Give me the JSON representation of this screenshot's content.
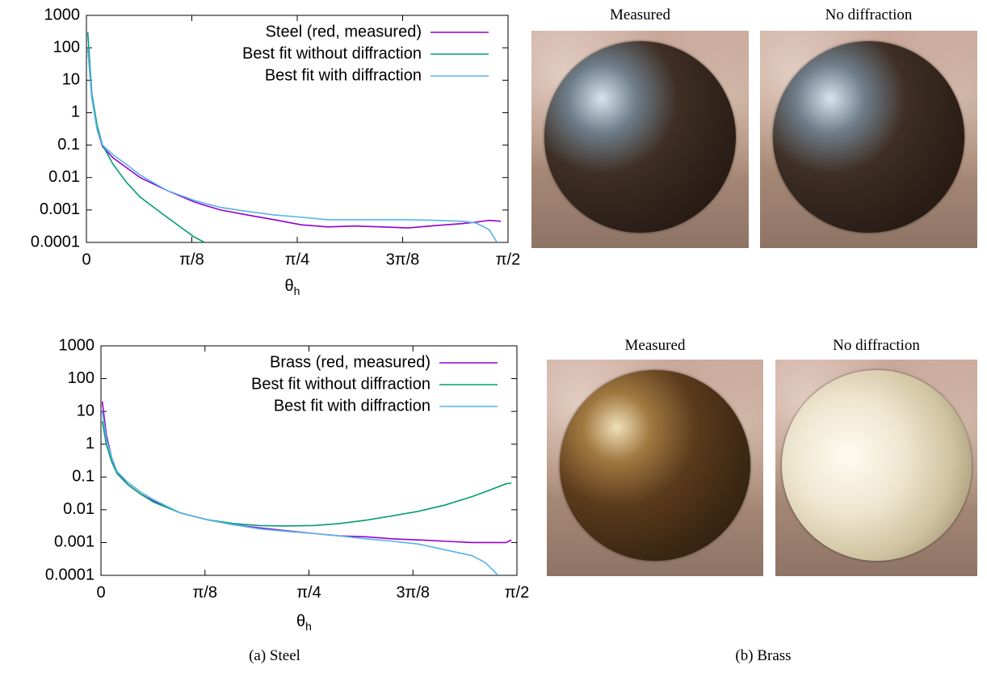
{
  "chart_data": [
    {
      "type": "line",
      "xlabel": "θ",
      "xlabel_sub": "h",
      "log_y": true,
      "xlim": [
        0,
        1.5708
      ],
      "ylim": [
        0.0001,
        1000
      ],
      "xticks": [
        0,
        {
          "value": 0.3927,
          "label": "π/8"
        },
        {
          "value": 0.7854,
          "label": "π/4"
        },
        {
          "value": 1.1781,
          "label": "3π/8"
        },
        {
          "value": 1.5708,
          "label": "π/2"
        }
      ],
      "yticks": [
        1000,
        100,
        10,
        1,
        0.1,
        0.01,
        0.001,
        0.0001
      ],
      "legend": "top-right",
      "x": [
        0.005,
        0.02,
        0.04,
        0.06,
        0.1,
        0.15,
        0.2,
        0.3,
        0.4,
        0.44,
        0.5,
        0.6,
        0.7,
        0.8,
        0.9,
        1.0,
        1.1,
        1.2,
        1.3,
        1.4,
        1.45,
        1.5,
        1.53,
        1.544
      ],
      "series": [
        {
          "name": "Steel (red, measured)",
          "color": "#9400d3",
          "values": [
            100,
            3,
            0.3,
            0.09,
            0.04,
            0.02,
            0.01,
            0.004,
            0.0018,
            0.0014,
            0.001,
            0.0007,
            0.0005,
            0.00035,
            0.0003,
            0.00032,
            0.0003,
            0.00028,
            0.00033,
            0.00038,
            0.00042,
            0.00048,
            0.00046,
            0.00045
          ]
        },
        {
          "name": "Best fit without diffraction",
          "color": "#009e73",
          "values": [
            300,
            4,
            0.4,
            0.1,
            0.025,
            0.007,
            0.0025,
            0.0006,
            0.00015,
            0.0001,
            null,
            null,
            null,
            null,
            null,
            null,
            null,
            null,
            null,
            null,
            null,
            null,
            null,
            null
          ]
        },
        {
          "name": "Best fit with diffraction",
          "color": "#56b4e9",
          "values": [
            100,
            3,
            0.3,
            0.1,
            0.05,
            0.025,
            0.012,
            0.004,
            0.002,
            0.0016,
            0.0012,
            0.0009,
            0.0007,
            0.0006,
            0.0005,
            0.0005,
            0.0005,
            0.0005,
            0.00048,
            0.00045,
            0.0004,
            0.00025,
            0.0001,
            null
          ]
        }
      ]
    },
    {
      "type": "line",
      "xlabel": "θ",
      "xlabel_sub": "h",
      "log_y": true,
      "xlim": [
        0,
        1.5708
      ],
      "ylim": [
        0.0001,
        1000
      ],
      "xticks": [
        0,
        {
          "value": 0.3927,
          "label": "π/8"
        },
        {
          "value": 0.7854,
          "label": "π/4"
        },
        {
          "value": 1.1781,
          "label": "3π/8"
        },
        {
          "value": 1.5708,
          "label": "π/2"
        }
      ],
      "yticks": [
        1000,
        100,
        10,
        1,
        0.1,
        0.01,
        0.001,
        0.0001
      ],
      "legend": "top-right",
      "x": [
        0.005,
        0.02,
        0.04,
        0.06,
        0.1,
        0.15,
        0.2,
        0.3,
        0.4,
        0.5,
        0.6,
        0.7,
        0.8,
        0.9,
        1.0,
        1.1,
        1.2,
        1.3,
        1.4,
        1.45,
        1.5,
        1.53,
        1.55
      ],
      "series": [
        {
          "name": "Brass (red, measured)",
          "color": "#9400d3",
          "values": [
            20,
            2,
            0.4,
            0.15,
            0.06,
            0.03,
            0.018,
            0.008,
            0.005,
            0.0035,
            0.0028,
            0.0023,
            0.0019,
            0.0016,
            0.0015,
            0.0013,
            0.0012,
            0.0011,
            0.001,
            0.001,
            0.001,
            0.001,
            0.0012
          ]
        },
        {
          "name": "Best fit without diffraction",
          "color": "#009e73",
          "values": [
            5,
            1,
            0.3,
            0.13,
            0.06,
            0.03,
            0.017,
            0.008,
            0.005,
            0.0038,
            0.0033,
            0.0032,
            0.0033,
            0.0038,
            0.0048,
            0.0065,
            0.009,
            0.014,
            0.025,
            0.035,
            0.05,
            0.062,
            0.065
          ]
        },
        {
          "name": "Best fit with diffraction",
          "color": "#56b4e9",
          "values": [
            10,
            1.5,
            0.4,
            0.15,
            0.07,
            0.035,
            0.02,
            0.008,
            0.005,
            0.0035,
            0.0026,
            0.0022,
            0.0019,
            0.0016,
            0.0013,
            0.0011,
            0.0009,
            0.0006,
            0.0004,
            0.00025,
            0.0001,
            null,
            null
          ]
        }
      ]
    }
  ],
  "renders": {
    "steel": {
      "titles": [
        "Measured",
        "No diffraction"
      ]
    },
    "brass": {
      "titles": [
        "Measured",
        "No diffraction"
      ]
    }
  },
  "captions": [
    "(a) Steel",
    "(b) Brass"
  ]
}
